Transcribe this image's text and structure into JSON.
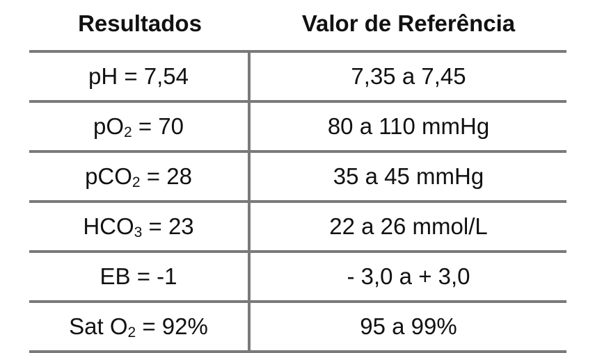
{
  "table": {
    "headers": {
      "results": "Resultados",
      "reference": "Valor de Referência"
    },
    "rows": [
      {
        "result_prefix": "pH = 7,54",
        "result_sub": "",
        "result_suffix": "",
        "reference": "7,35 a 7,45"
      },
      {
        "result_prefix": "pO",
        "result_sub": "2",
        "result_suffix": " = 70",
        "reference": "80 a 110 mmHg"
      },
      {
        "result_prefix": "pCO",
        "result_sub": "2",
        "result_suffix": " = 28",
        "reference": "35 a 45 mmHg"
      },
      {
        "result_prefix": "HCO",
        "result_sub": "3",
        "result_suffix": " = 23",
        "reference": "22 a 26 mmol/L"
      },
      {
        "result_prefix": "EB = -1",
        "result_sub": "",
        "result_suffix": "",
        "reference": "- 3,0 a + 3,0"
      },
      {
        "result_prefix": "Sat O",
        "result_sub": "2",
        "result_suffix": " = 92%",
        "reference": "95 a 99%"
      }
    ]
  }
}
